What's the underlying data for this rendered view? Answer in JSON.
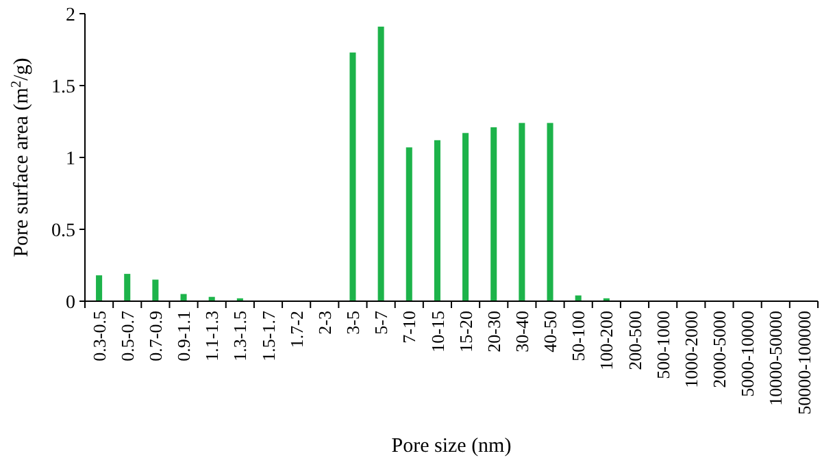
{
  "chart_data": {
    "type": "bar",
    "xlabel": "Pore size (nm)",
    "ylabel": "Pore surface area (m$^{2}$/g)",
    "categories": [
      "0.3-0.5",
      "0.5-0.7",
      "0.7-0.9",
      "0.9-1.1",
      "1.1-1.3",
      "1.3-1.5",
      "1.5-1.7",
      "1.7-2",
      "2-3",
      "3-5",
      "5-7",
      "7-10",
      "10-15",
      "15-20",
      "20-30",
      "30-40",
      "40-50",
      "50-100",
      "100-200",
      "200-500",
      "500-1000",
      "1000-2000",
      "2000-5000",
      "5000-10000",
      "10000-50000",
      "50000-100000"
    ],
    "values": [
      0.18,
      0.19,
      0.15,
      0.05,
      0.03,
      0.02,
      0,
      0,
      0,
      1.73,
      1.91,
      1.07,
      1.12,
      1.17,
      1.21,
      1.24,
      1.24,
      0.04,
      0.02,
      0,
      0,
      0,
      0,
      0,
      0,
      0
    ],
    "color": "#1db34a",
    "ylim": [
      0,
      2
    ],
    "yticks": [
      0,
      0.5,
      1,
      1.5,
      2
    ],
    "grid": false
  }
}
